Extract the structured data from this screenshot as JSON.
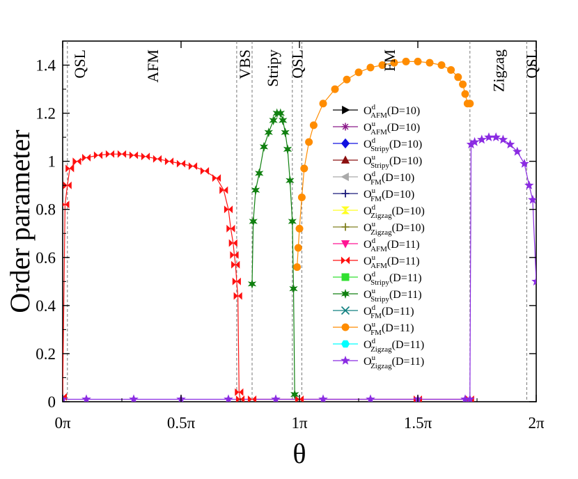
{
  "chart_data": {
    "type": "line",
    "xlabel": "θ",
    "ylabel": "Order parameter",
    "xlim": [
      0,
      2
    ],
    "ylim": [
      0,
      1.5
    ],
    "x_unit": "π",
    "x_ticks": [
      {
        "value": 0,
        "label": "0π"
      },
      {
        "value": 0.5,
        "label": "0.5π"
      },
      {
        "value": 1,
        "label": "1π"
      },
      {
        "value": 1.5,
        "label": "1.5π"
      },
      {
        "value": 2,
        "label": "2π"
      }
    ],
    "y_ticks": [
      {
        "value": 0,
        "label": "0"
      },
      {
        "value": 0.2,
        "label": "0.2"
      },
      {
        "value": 0.4,
        "label": "0.4"
      },
      {
        "value": 0.6,
        "label": "0.6"
      },
      {
        "value": 0.8,
        "label": "0.8"
      },
      {
        "value": 1.0,
        "label": "1"
      },
      {
        "value": 1.2,
        "label": "1.2"
      },
      {
        "value": 1.4,
        "label": "1.4"
      }
    ],
    "phase_boundaries": [
      0.02,
      0.735,
      0.8,
      0.97,
      1.01,
      1.72,
      1.96
    ],
    "phase_labels": [
      {
        "text": "QSL",
        "x": 0.07
      },
      {
        "text": "AFM",
        "x": 0.38
      },
      {
        "text": "VBS",
        "x": 0.768
      },
      {
        "text": "Stripy",
        "x": 0.885
      },
      {
        "text": "QSL",
        "x": 0.99
      },
      {
        "text": "FM",
        "x": 1.38
      },
      {
        "text": "Zigzag",
        "x": 1.84
      },
      {
        "text": "QSL",
        "x": 1.98
      }
    ],
    "legend_position": "center-right",
    "series": [
      {
        "name": {
          "base": "O",
          "sup": "d",
          "sub": "AFM",
          "tail": "(D=10)"
        },
        "color": "#000000",
        "marker": "tri-right",
        "x": [],
        "y": []
      },
      {
        "name": {
          "base": "O",
          "sup": "u",
          "sub": "AFM",
          "tail": "(D=10)"
        },
        "color": "#8B1A89",
        "marker": "asterisk",
        "x": [],
        "y": []
      },
      {
        "name": {
          "base": "O",
          "sup": "d",
          "sub": "Stripy",
          "tail": "(D=10)"
        },
        "color": "#1010E0",
        "marker": "diamond",
        "x": [],
        "y": []
      },
      {
        "name": {
          "base": "O",
          "sup": "u",
          "sub": "Stripy",
          "tail": "(D=10)"
        },
        "color": "#8B1010",
        "marker": "tri-up",
        "x": [],
        "y": []
      },
      {
        "name": {
          "base": "O",
          "sup": "d",
          "sub": "FM",
          "tail": "(D=10)"
        },
        "color": "#AAAAAA",
        "marker": "tri-left",
        "x": [],
        "y": []
      },
      {
        "name": {
          "base": "O",
          "sup": "u",
          "sub": "FM",
          "tail": "(D=10)"
        },
        "color": "#1A1A7A",
        "marker": "plus",
        "x": [],
        "y": []
      },
      {
        "name": {
          "base": "O",
          "sup": "d",
          "sub": "Zigzag",
          "tail": "(D=10)"
        },
        "color": "#FFFF20",
        "marker": "hourglass",
        "x": [],
        "y": []
      },
      {
        "name": {
          "base": "O",
          "sup": "u",
          "sub": "Zigzag",
          "tail": "(D=10)"
        },
        "color": "#808020",
        "marker": "plus",
        "x": [],
        "y": []
      },
      {
        "name": {
          "base": "O",
          "sup": "d",
          "sub": "AFM",
          "tail": "(D=11)"
        },
        "color": "#FF1493",
        "marker": "tri-down",
        "x": [],
        "y": []
      },
      {
        "name": {
          "base": "O",
          "sup": "u",
          "sub": "AFM",
          "tail": "(D=11)"
        },
        "color": "#FF1010",
        "marker": "bowtie",
        "x": [
          0,
          0.01,
          0.02,
          0.03,
          0.06,
          0.1,
          0.15,
          0.2,
          0.25,
          0.3,
          0.35,
          0.4,
          0.45,
          0.5,
          0.55,
          0.6,
          0.65,
          0.68,
          0.7,
          0.71,
          0.72,
          0.725,
          0.73,
          0.735,
          0.74,
          0.745,
          0.75,
          0.8,
          1.0,
          1.5,
          1.72
        ],
        "y": [
          0.02,
          0.82,
          0.9,
          0.97,
          1.0,
          1.015,
          1.025,
          1.03,
          1.03,
          1.025,
          1.02,
          1.01,
          1.0,
          0.99,
          0.98,
          0.96,
          0.93,
          0.88,
          0.8,
          0.72,
          0.66,
          0.61,
          0.57,
          0.5,
          0.44,
          0.04,
          0.01,
          0.01,
          0.01,
          0.01,
          0.01
        ]
      },
      {
        "name": {
          "base": "O",
          "sup": "d",
          "sub": "Stripy",
          "tail": "(D=11)"
        },
        "color": "#30E030",
        "marker": "square",
        "x": [],
        "y": []
      },
      {
        "name": {
          "base": "O",
          "sup": "u",
          "sub": "Stripy",
          "tail": "(D=11)"
        },
        "color": "#108010",
        "marker": "star6",
        "x": [
          0.8,
          0.805,
          0.815,
          0.83,
          0.85,
          0.87,
          0.89,
          0.905,
          0.92,
          0.93,
          0.94,
          0.95,
          0.96,
          0.97,
          0.975,
          0.98
        ],
        "y": [
          0.49,
          0.75,
          0.88,
          0.95,
          1.06,
          1.12,
          1.17,
          1.2,
          1.2,
          1.17,
          1.12,
          1.05,
          0.92,
          0.75,
          0.47,
          0.03
        ]
      },
      {
        "name": {
          "base": "O",
          "sup": "d",
          "sub": "FM",
          "tail": "(D=11)"
        },
        "color": "#108080",
        "marker": "cross",
        "x": [],
        "y": []
      },
      {
        "name": {
          "base": "O",
          "sup": "u",
          "sub": "FM",
          "tail": "(D=11)"
        },
        "color": "#FF8C00",
        "marker": "circle",
        "x": [
          0.99,
          0.995,
          1.0,
          1.01,
          1.02,
          1.04,
          1.06,
          1.1,
          1.15,
          1.2,
          1.25,
          1.3,
          1.35,
          1.4,
          1.45,
          1.5,
          1.55,
          1.6,
          1.64,
          1.67,
          1.69,
          1.7,
          1.71,
          1.72
        ],
        "y": [
          0.56,
          0.64,
          0.72,
          0.85,
          0.97,
          1.08,
          1.15,
          1.24,
          1.3,
          1.34,
          1.37,
          1.39,
          1.4,
          1.41,
          1.415,
          1.415,
          1.41,
          1.4,
          1.38,
          1.35,
          1.32,
          1.28,
          1.24,
          1.24
        ]
      },
      {
        "name": {
          "base": "O",
          "sup": "d",
          "sub": "Zigzag",
          "tail": "(D=11)"
        },
        "color": "#00FFFF",
        "marker": "hexagon",
        "x": [],
        "y": []
      },
      {
        "name": {
          "base": "O",
          "sup": "u",
          "sub": "Zigzag",
          "tail": "(D=11)"
        },
        "color": "#8A2BE2",
        "marker": "star5",
        "x": [
          0,
          0.1,
          0.3,
          0.5,
          0.7,
          0.9,
          1.1,
          1.3,
          1.5,
          1.7,
          1.72,
          1.725,
          1.74,
          1.77,
          1.8,
          1.83,
          1.86,
          1.89,
          1.92,
          1.95,
          1.97,
          1.985,
          2.0
        ],
        "y": [
          0.01,
          0.01,
          0.01,
          0.01,
          0.01,
          0.01,
          0.01,
          0.01,
          0.01,
          0.01,
          0.01,
          1.07,
          1.08,
          1.09,
          1.1,
          1.1,
          1.09,
          1.07,
          1.04,
          0.99,
          0.9,
          0.84,
          0.5
        ]
      }
    ]
  }
}
